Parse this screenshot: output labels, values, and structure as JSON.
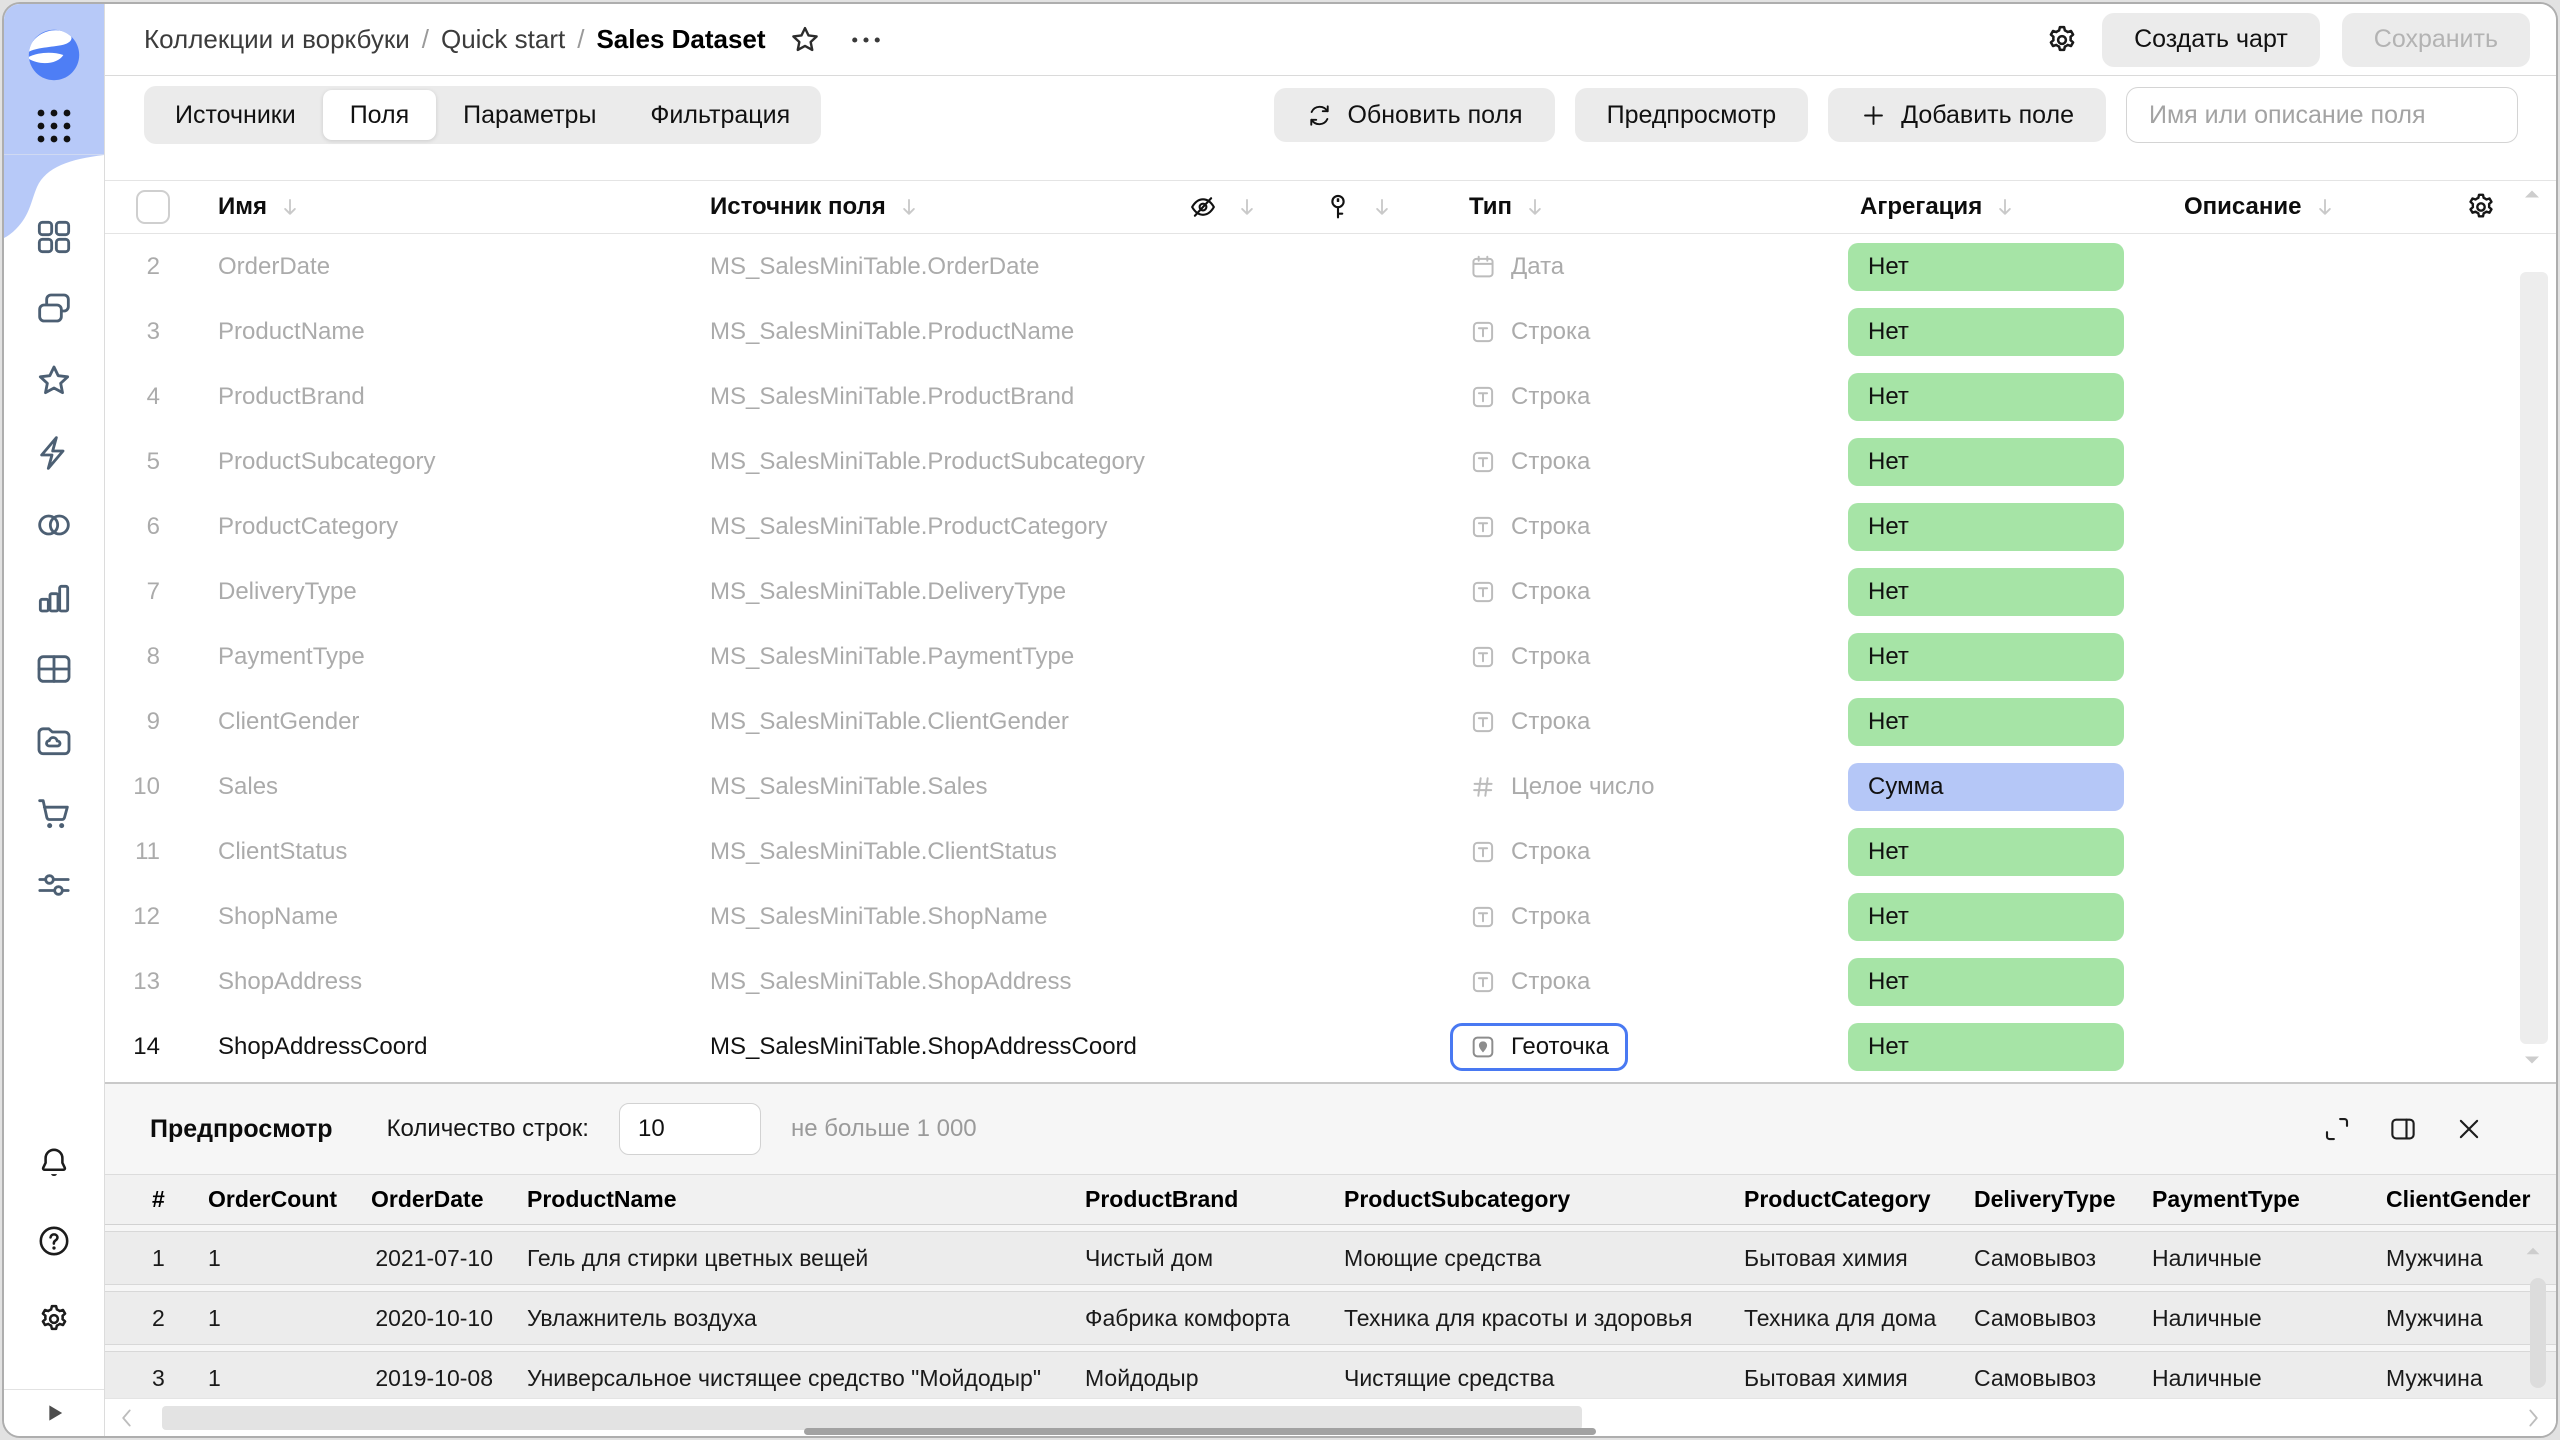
{
  "colors": {
    "accent_blue": "#4979f2",
    "pill_green": "#a6e4a6",
    "pill_blue": "#b5c7f7",
    "sidebar_blue": "#b7c9f8",
    "logo_blue": "#4e7ef5"
  },
  "topbar": {
    "breadcrumb": [
      "Коллекции и воркбуки",
      "Quick start",
      "Sales Dataset"
    ],
    "create_chart_label": "Создать чарт",
    "save_label": "Сохранить"
  },
  "tabs": [
    {
      "label": "Источники",
      "active": false
    },
    {
      "label": "Поля",
      "active": true
    },
    {
      "label": "Параметры",
      "active": false
    },
    {
      "label": "Фильтрация",
      "active": false
    }
  ],
  "toolbar": {
    "refresh_label": "Обновить поля",
    "preview_label": "Предпросмотр",
    "add_field_label": "Добавить поле",
    "search_placeholder": "Имя или описание поля"
  },
  "fields_table": {
    "headers": {
      "name": "Имя",
      "source": "Источник поля",
      "hidden_icon": "eye-slash-icon",
      "key_icon": "key-icon",
      "type": "Тип",
      "aggregation": "Агрегация",
      "description": "Описание"
    },
    "rows": [
      {
        "num": "2",
        "name": "OrderDate",
        "source": "MS_SalesMiniTable.OrderDate",
        "type_icon": "calendar-icon",
        "type_label": "Дата",
        "aggregation": "Нет",
        "aggregation_variant": "green",
        "highlighted": false
      },
      {
        "num": "3",
        "name": "ProductName",
        "source": "MS_SalesMiniTable.ProductName",
        "type_icon": "text-icon",
        "type_label": "Строка",
        "aggregation": "Нет",
        "aggregation_variant": "green",
        "highlighted": false
      },
      {
        "num": "4",
        "name": "ProductBrand",
        "source": "MS_SalesMiniTable.ProductBrand",
        "type_icon": "text-icon",
        "type_label": "Строка",
        "aggregation": "Нет",
        "aggregation_variant": "green",
        "highlighted": false
      },
      {
        "num": "5",
        "name": "ProductSubcategory",
        "source": "MS_SalesMiniTable.ProductSubcategory",
        "type_icon": "text-icon",
        "type_label": "Строка",
        "aggregation": "Нет",
        "aggregation_variant": "green",
        "highlighted": false
      },
      {
        "num": "6",
        "name": "ProductCategory",
        "source": "MS_SalesMiniTable.ProductCategory",
        "type_icon": "text-icon",
        "type_label": "Строка",
        "aggregation": "Нет",
        "aggregation_variant": "green",
        "highlighted": false
      },
      {
        "num": "7",
        "name": "DeliveryType",
        "source": "MS_SalesMiniTable.DeliveryType",
        "type_icon": "text-icon",
        "type_label": "Строка",
        "aggregation": "Нет",
        "aggregation_variant": "green",
        "highlighted": false
      },
      {
        "num": "8",
        "name": "PaymentType",
        "source": "MS_SalesMiniTable.PaymentType",
        "type_icon": "text-icon",
        "type_label": "Строка",
        "aggregation": "Нет",
        "aggregation_variant": "green",
        "highlighted": false
      },
      {
        "num": "9",
        "name": "ClientGender",
        "source": "MS_SalesMiniTable.ClientGender",
        "type_icon": "text-icon",
        "type_label": "Строка",
        "aggregation": "Нет",
        "aggregation_variant": "green",
        "highlighted": false
      },
      {
        "num": "10",
        "name": "Sales",
        "source": "MS_SalesMiniTable.Sales",
        "type_icon": "hash-icon",
        "type_label": "Целое число",
        "aggregation": "Сумма",
        "aggregation_variant": "blue",
        "highlighted": false
      },
      {
        "num": "11",
        "name": "ClientStatus",
        "source": "MS_SalesMiniTable.ClientStatus",
        "type_icon": "text-icon",
        "type_label": "Строка",
        "aggregation": "Нет",
        "aggregation_variant": "green",
        "highlighted": false
      },
      {
        "num": "12",
        "name": "ShopName",
        "source": "MS_SalesMiniTable.ShopName",
        "type_icon": "text-icon",
        "type_label": "Строка",
        "aggregation": "Нет",
        "aggregation_variant": "green",
        "highlighted": false
      },
      {
        "num": "13",
        "name": "ShopAddress",
        "source": "MS_SalesMiniTable.ShopAddress",
        "type_icon": "text-icon",
        "type_label": "Строка",
        "aggregation": "Нет",
        "aggregation_variant": "green",
        "highlighted": false
      },
      {
        "num": "14",
        "name": "ShopAddressCoord",
        "source": "MS_SalesMiniTable.ShopAddressCoord",
        "type_icon": "geo-icon",
        "type_label": "Геоточка",
        "aggregation": "Нет",
        "aggregation_variant": "green",
        "highlighted": true
      }
    ]
  },
  "preview": {
    "title": "Предпросмотр",
    "row_count_label": "Количество строк:",
    "row_count_value": "10",
    "row_count_hint": "не больше 1 000",
    "table": {
      "columns": [
        "#",
        "OrderCount",
        "OrderDate",
        "ProductName",
        "ProductBrand",
        "ProductSubcategory",
        "ProductCategory",
        "DeliveryType",
        "PaymentType",
        "ClientGender"
      ],
      "rows": [
        [
          "1",
          "1",
          "2021-07-10",
          "Гель для стирки цветных вещей",
          "Чистый дом",
          "Моющие средства",
          "Бытовая химия",
          "Самовывоз",
          "Наличные",
          "Мужчина"
        ],
        [
          "2",
          "1",
          "2020-10-10",
          "Увлажнитель воздуха",
          "Фабрика комфорта",
          "Техника для красоты и здоровья",
          "Техника для дома",
          "Самовывоз",
          "Наличные",
          "Мужчина"
        ],
        [
          "3",
          "1",
          "2019-10-08",
          "Универсальное чистящее средство \"Мойдодыр\"",
          "Мойдодыр",
          "Чистящие средства",
          "Бытовая химия",
          "Самовывоз",
          "Наличные",
          "Мужчина"
        ]
      ]
    }
  },
  "sidebar": {
    "nav_icons": [
      "grid-squares-icon",
      "collections-icon",
      "star-icon",
      "bolt-icon",
      "circles-icon",
      "chart-icon",
      "table-icon",
      "folder-cloud-icon",
      "cart-icon",
      "sliders-icon"
    ],
    "footer_icons": [
      "bell-icon",
      "help-icon",
      "gear-icon"
    ]
  }
}
